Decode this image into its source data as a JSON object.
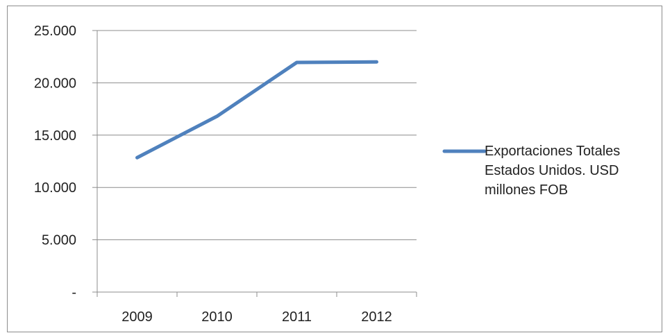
{
  "chart_data": {
    "type": "line",
    "title": "",
    "xlabel": "",
    "ylabel": "",
    "categories": [
      "2009",
      "2010",
      "2011",
      "2012"
    ],
    "series": [
      {
        "name": "Exportaciones Totales Estados Unidos. USD millones FOB",
        "values": [
          12850,
          16800,
          21950,
          22000
        ],
        "color": "#4f81bd"
      }
    ],
    "ylim": [
      0,
      25000
    ],
    "yticks": [
      0,
      5000,
      10000,
      15000,
      20000,
      25000
    ],
    "ytick_labels": [
      "-",
      "5.000",
      "10.000",
      "15.000",
      "20.000",
      "25.000"
    ],
    "grid": true,
    "legend_position": "right"
  }
}
